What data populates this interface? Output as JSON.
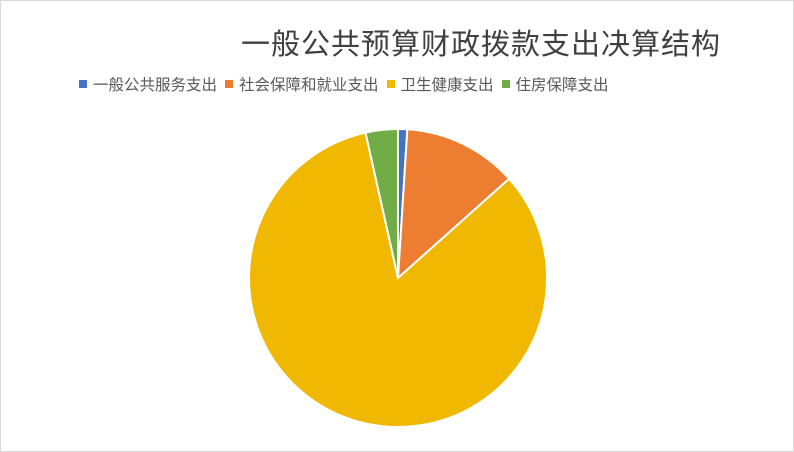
{
  "chart_data": {
    "type": "pie",
    "title": "一般公共预算财政拨款支出决算结构",
    "categories": [
      "一般公共服务支出",
      "社会保障和就业支出",
      "卫生健康支出",
      "住房保障支出"
    ],
    "values": [
      1.0,
      12.4,
      83.1,
      3.5
    ],
    "unit": "percent (estimated)",
    "colors": [
      "#4472C4",
      "#ED7D31",
      "#F0B800",
      "#70AD47"
    ],
    "start_angle": "12 o'clock, clockwise",
    "legend_placement": "top"
  }
}
